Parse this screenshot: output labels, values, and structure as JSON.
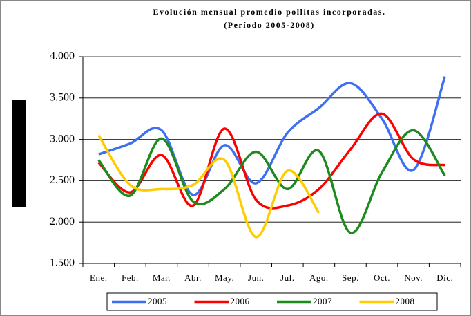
{
  "chart_data": {
    "type": "line",
    "title": "Evolución mensual promedio pollitas incorporadas.",
    "subtitle": "(Período 2005-2008)",
    "categories": [
      "Ene.",
      "Feb.",
      "Mar.",
      "Abr.",
      "May.",
      "Jun.",
      "Jul.",
      "Ago.",
      "Sep.",
      "Oct.",
      "Nov.",
      "Dic."
    ],
    "series": [
      {
        "name": "2005",
        "color": "#3d6ff0",
        "values": [
          2820,
          2950,
          3110,
          2330,
          2930,
          2470,
          3080,
          3380,
          3680,
          3250,
          2630,
          3760
        ]
      },
      {
        "name": "2006",
        "color": "#ff0000",
        "values": [
          2720,
          2360,
          2810,
          2200,
          3130,
          2270,
          2200,
          2400,
          2880,
          3310,
          2760,
          2690
        ]
      },
      {
        "name": "2007",
        "color": "#1c8a1c",
        "values": [
          2750,
          2320,
          3010,
          2250,
          2400,
          2850,
          2400,
          2860,
          1870,
          2600,
          3110,
          2560
        ]
      },
      {
        "name": "2008",
        "color": "#ffcc00",
        "values": [
          3050,
          2450,
          2400,
          2450,
          2750,
          1820,
          2620,
          2110,
          null,
          null,
          null,
          null
        ]
      }
    ],
    "ylim": [
      1500,
      4000
    ],
    "yticks": [
      {
        "value": 1500,
        "label": "1.500"
      },
      {
        "value": 2000,
        "label": "2.000"
      },
      {
        "value": 2500,
        "label": "2.500"
      },
      {
        "value": 3000,
        "label": "3.000"
      },
      {
        "value": 3500,
        "label": "3.500"
      },
      {
        "value": 4000,
        "label": "4.000"
      }
    ],
    "grid": true,
    "legend": "bottom"
  }
}
